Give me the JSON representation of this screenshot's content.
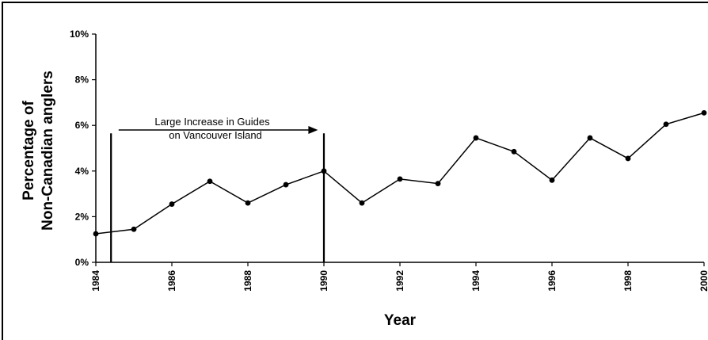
{
  "chart_data": {
    "type": "line",
    "title": "",
    "xlabel": "Year",
    "ylabel_line1": "Percentage of",
    "ylabel_line2": "Non-Canadian anglers",
    "xlim": [
      1984,
      2000
    ],
    "ylim": [
      0,
      10
    ],
    "x_ticks": [
      "1984",
      "1986",
      "1988",
      "1990",
      "1992",
      "1994",
      "1996",
      "1998",
      "2000"
    ],
    "y_ticks": [
      "0%",
      "2%",
      "4%",
      "6%",
      "8%",
      "10%"
    ],
    "grid": false,
    "series": [
      {
        "x": [
          1984,
          1985,
          1986,
          1987,
          1988,
          1989,
          1990,
          1991,
          1992,
          1993,
          1994,
          1995,
          1996,
          1997,
          1998,
          1999,
          2000
        ],
        "values": [
          1.25,
          1.45,
          2.55,
          3.55,
          2.6,
          3.4,
          4.0,
          2.6,
          3.65,
          3.45,
          5.45,
          4.85,
          3.6,
          5.45,
          4.55,
          6.05,
          6.55
        ]
      }
    ],
    "annotation": {
      "line1": "Large Increase in Guides",
      "line2": "on Vancouver Island",
      "vline_start_x": 1984.4,
      "vline_end_x": 1990,
      "arrow_from_x": 1984.6,
      "arrow_to_x": 1989.8,
      "arrow_y": 5.8
    },
    "colors": {
      "line": "#000000",
      "marker": "#000000"
    }
  }
}
